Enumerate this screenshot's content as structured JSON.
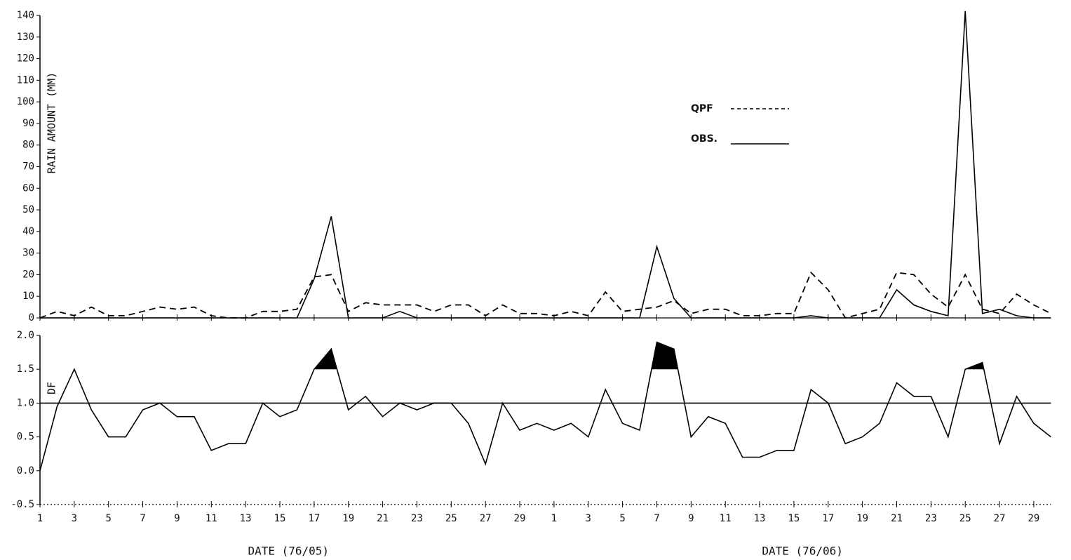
{
  "chart_data": [
    {
      "type": "line",
      "ylabel": "RAIN AMOUNT (MM)",
      "ylim": [
        0,
        140
      ],
      "yticks": [
        0,
        10,
        20,
        30,
        40,
        50,
        60,
        70,
        80,
        90,
        100,
        110,
        120,
        130,
        140
      ],
      "legend": "upper right",
      "series": [
        {
          "name": "QPF",
          "color": "#000000",
          "dash": true,
          "values": [
            0,
            3,
            1,
            5,
            1,
            1,
            3,
            5,
            4,
            5,
            1,
            0,
            0,
            3,
            3,
            4,
            19,
            20,
            3,
            7,
            6,
            6,
            6,
            3,
            6,
            6,
            1,
            6,
            2,
            2,
            1,
            3,
            1,
            12,
            3,
            4,
            5,
            8,
            2,
            4,
            4,
            1,
            1,
            2,
            2,
            21,
            13,
            0,
            2,
            4,
            21,
            20,
            11,
            5,
            20,
            4,
            2,
            11,
            6,
            2
          ]
        },
        {
          "name": "OBS.",
          "color": "#000000",
          "dash": false,
          "values": [
            0,
            0,
            0,
            0,
            0,
            0,
            0,
            0,
            0,
            0,
            0,
            0,
            0,
            0,
            0,
            0,
            18,
            47,
            0,
            0,
            0,
            3,
            0,
            0,
            0,
            0,
            0,
            0,
            0,
            0,
            0,
            0,
            0,
            0,
            0,
            0,
            33,
            9,
            0,
            0,
            0,
            0,
            0,
            0,
            0,
            1,
            0,
            0,
            0,
            0,
            13,
            6,
            3,
            1,
            142,
            2,
            4,
            1,
            0,
            0
          ]
        }
      ]
    },
    {
      "type": "line",
      "ylabel": "DF",
      "ylim": [
        -0.5,
        2.0
      ],
      "yticks": [
        {
          "value": -0.5,
          "label": "-0.5"
        },
        {
          "value": 0,
          "label": "0.0"
        },
        {
          "value": 0.5,
          "label": "0.5"
        },
        {
          "value": 1,
          "label": "1.0"
        },
        {
          "value": 1.5,
          "label": "1.5"
        },
        {
          "value": 2,
          "label": "2.0"
        }
      ],
      "hline": 1,
      "fill_above": 1.5,
      "xlabels": [
        "DATE (76/05)",
        "DATE (76/06)"
      ],
      "categories": [
        "1",
        null,
        "3",
        null,
        "5",
        null,
        "7",
        null,
        "9",
        null,
        "11",
        null,
        "13",
        null,
        "15",
        null,
        "17",
        null,
        "19",
        null,
        "21",
        null,
        "23",
        null,
        "25",
        null,
        "27",
        null,
        "29",
        null,
        "1",
        null,
        "3",
        null,
        "5",
        null,
        "7",
        null,
        "9",
        null,
        "11",
        null,
        "13",
        null,
        "15",
        null,
        "17",
        null,
        "19",
        null,
        "21",
        null,
        "23",
        null,
        "25",
        null,
        "27",
        null,
        "29",
        null
      ],
      "series": [
        {
          "color": "#000000",
          "dash": false,
          "values": [
            0.0,
            0.95,
            1.5,
            0.9,
            0.5,
            0.5,
            0.9,
            1.0,
            0.8,
            0.8,
            0.3,
            0.4,
            0.4,
            1.0,
            0.8,
            0.9,
            1.5,
            1.8,
            0.9,
            1.1,
            0.8,
            1.0,
            0.9,
            1.0,
            1.0,
            0.7,
            0.1,
            1.0,
            0.6,
            0.7,
            0.6,
            0.7,
            0.5,
            1.2,
            0.7,
            0.6,
            1.9,
            1.8,
            0.5,
            0.8,
            0.7,
            0.2,
            0.2,
            0.3,
            0.3,
            1.2,
            1.0,
            0.4,
            0.5,
            0.7,
            1.3,
            1.1,
            1.1,
            0.5,
            1.5,
            1.6,
            0.4,
            1.1,
            0.7,
            0.5
          ]
        }
      ]
    }
  ]
}
